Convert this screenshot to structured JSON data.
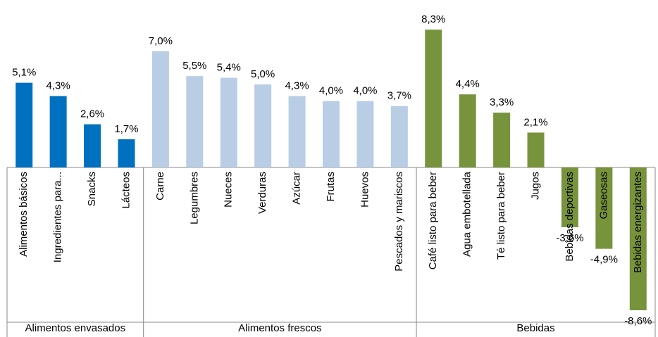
{
  "chart_data": {
    "type": "bar",
    "groups": [
      {
        "name": "Alimentos envasados",
        "color": "#0070c0",
        "categories": [
          "Alimentos básicos",
          "Ingredientes para...",
          "Snacks",
          "Lácteos"
        ],
        "values": [
          5.1,
          4.3,
          2.6,
          1.7
        ],
        "value_labels": [
          "5,1%",
          "4,3%",
          "2,6%",
          "1,7%"
        ]
      },
      {
        "name": "Alimentos frescos",
        "color": "#b9cde5",
        "categories": [
          "Carne",
          "Legumbres",
          "Nueces",
          "Verduras",
          "Azúcar",
          "Frutas",
          "Huevos",
          "Pescados y mariscos"
        ],
        "values": [
          7.0,
          5.5,
          5.4,
          5.0,
          4.3,
          4.0,
          4.0,
          3.7
        ],
        "value_labels": [
          "7,0%",
          "5,5%",
          "5,4%",
          "5,0%",
          "4,3%",
          "4,0%",
          "4,0%",
          "3,7%"
        ]
      },
      {
        "name": "Bebidas",
        "color": "#77933c",
        "categories": [
          "Café listo para beber",
          "Agua embotellada",
          "Té listo para beber",
          "Jugos",
          "Bebidas deportivas",
          "Gaseosas",
          "Bebidas energizantes"
        ],
        "values": [
          8.3,
          4.4,
          3.3,
          2.1,
          -3.6,
          -4.9,
          -8.6
        ],
        "value_labels": [
          "8,3%",
          "4,4%",
          "3,3%",
          "2,1%",
          "-3,6%",
          "-4,9%",
          "-8,6%"
        ]
      }
    ]
  }
}
